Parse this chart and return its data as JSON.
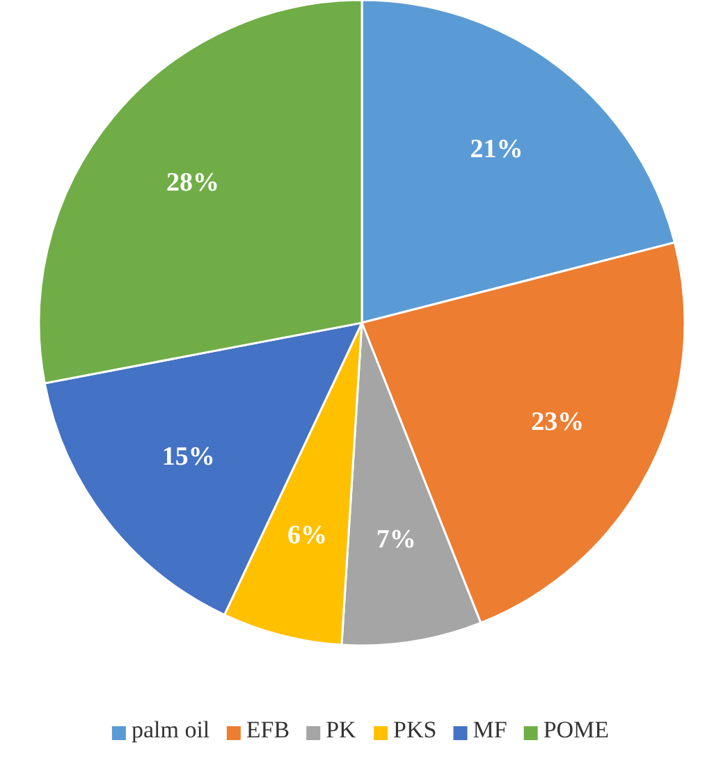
{
  "chart_data": {
    "type": "pie",
    "categories": [
      "palm oil",
      "EFB",
      "PK",
      "PKS",
      "MF",
      "POME"
    ],
    "values": [
      21,
      23,
      7,
      6,
      15,
      28
    ],
    "colors": [
      "#5b9bd5",
      "#ed7d31",
      "#a5a5a5",
      "#ffc000",
      "#4472c4",
      "#70ad47"
    ],
    "value_labels": [
      "21%",
      "23%",
      "7%",
      "6%",
      "15%",
      "28%"
    ],
    "legend": "bottom"
  }
}
